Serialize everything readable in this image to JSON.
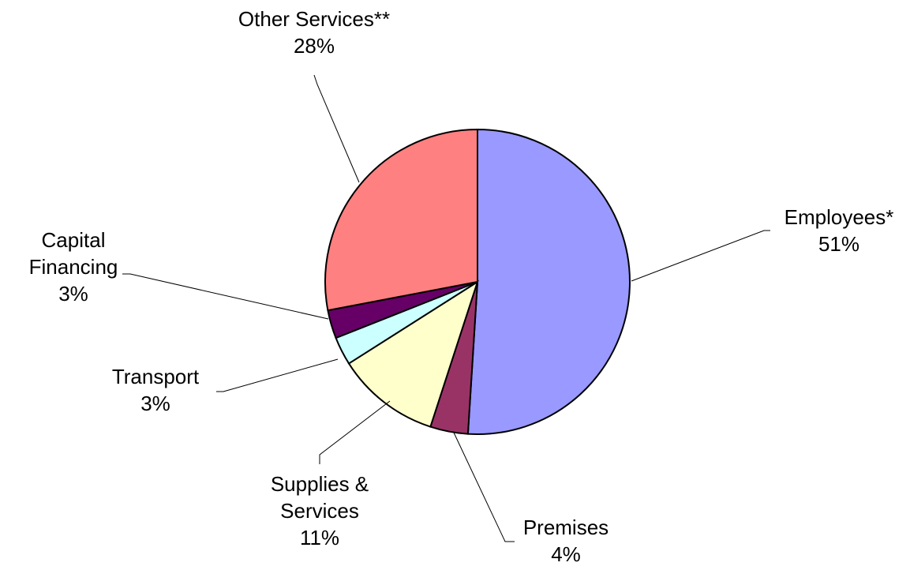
{
  "chart_data": {
    "type": "pie",
    "title": "",
    "start_angle_deg": 0,
    "direction": "clockwise",
    "slices": [
      {
        "name": "Employees*",
        "value": 51,
        "value_label": "51%",
        "label_lines": [
          "Employees*"
        ],
        "color": "#9999ff"
      },
      {
        "name": "Premises",
        "value": 4,
        "value_label": "4%",
        "label_lines": [
          "Premises"
        ],
        "color": "#993366"
      },
      {
        "name": "Supplies & Services",
        "value": 11,
        "value_label": "11%",
        "label_lines": [
          "Supplies &",
          "Services"
        ],
        "color": "#ffffcc"
      },
      {
        "name": "Transport",
        "value": 3,
        "value_label": "3%",
        "label_lines": [
          "Transport"
        ],
        "color": "#ccffff"
      },
      {
        "name": "Capital Financing",
        "value": 3,
        "value_label": "3%",
        "label_lines": [
          "Capital",
          "Financing"
        ],
        "color": "#660066"
      },
      {
        "name": "Other Services**",
        "value": 28,
        "value_label": "28%",
        "label_lines": [
          "Other Services**"
        ],
        "color": "#ff8080"
      }
    ]
  }
}
